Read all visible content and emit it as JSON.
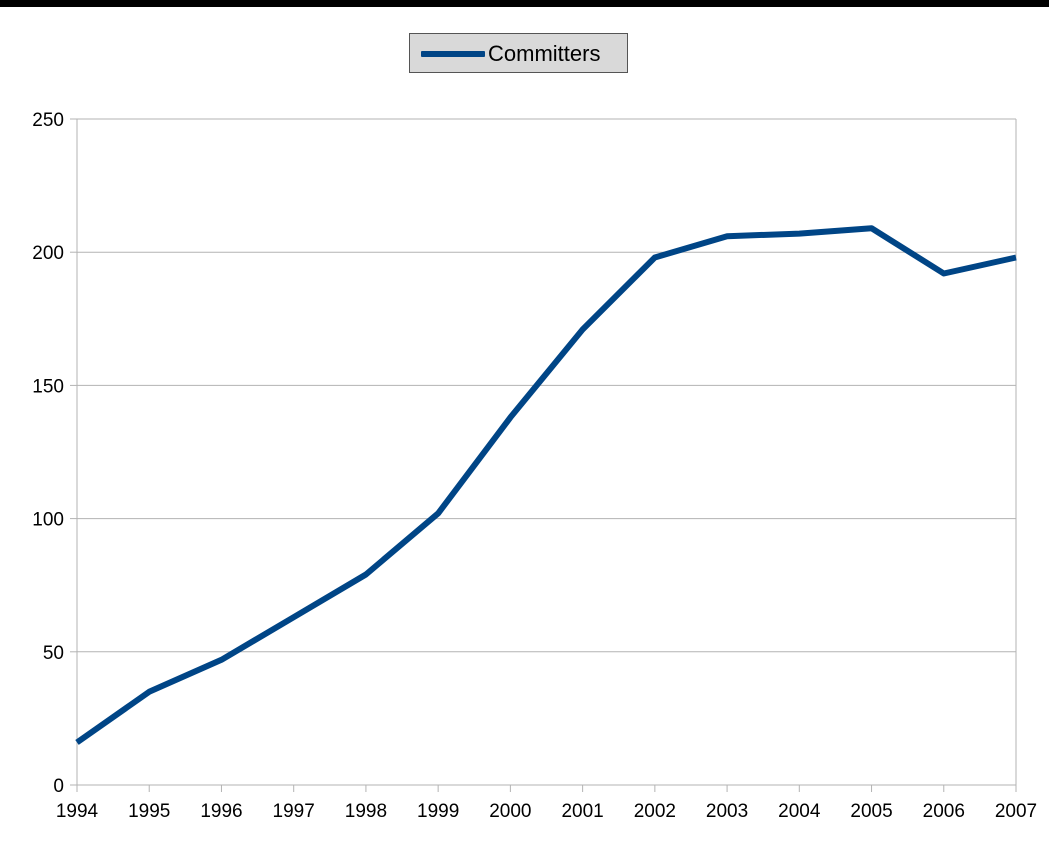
{
  "chart_data": {
    "type": "line",
    "title": "",
    "xlabel": "",
    "ylabel": "",
    "categories": [
      "1994",
      "1995",
      "1996",
      "1997",
      "1998",
      "1999",
      "2000",
      "2001",
      "2002",
      "2003",
      "2004",
      "2005",
      "2006",
      "2007"
    ],
    "series": [
      {
        "name": "Committers",
        "color": "#004586",
        "values": [
          16,
          35,
          47,
          63,
          79,
          102,
          138,
          171,
          198,
          206,
          207,
          209,
          192,
          198
        ]
      }
    ],
    "ylim": [
      0,
      250
    ],
    "yticks": [
      0,
      50,
      100,
      150,
      200,
      250
    ],
    "grid": true,
    "legend_position": "top-center"
  }
}
